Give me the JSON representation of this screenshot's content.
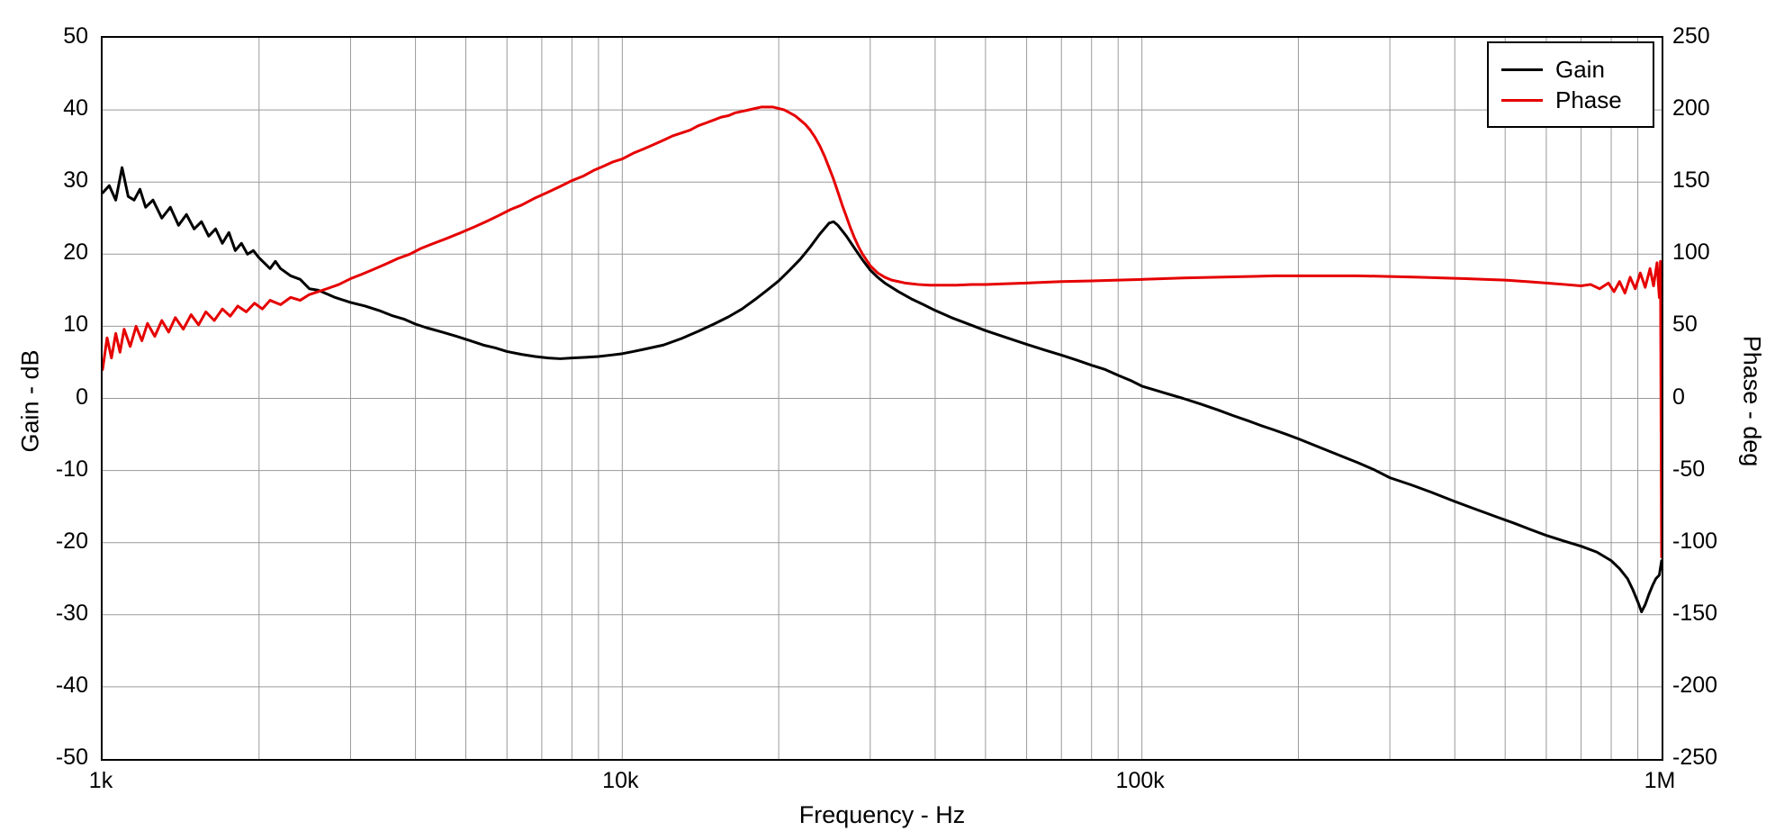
{
  "figure": {
    "background": "#ffffff",
    "xlabel": "Frequency - Hz",
    "ylabel_left": "Gain - dB",
    "ylabel_right": "Phase - deg"
  },
  "chart_data": {
    "type": "line",
    "title": "",
    "xlabel": "Frequency - Hz",
    "x_axis": {
      "scale": "log",
      "min": 1000,
      "max": 1000000,
      "ticks": [
        {
          "value": 1000,
          "label": "1k"
        },
        {
          "value": 10000,
          "label": "10k"
        },
        {
          "value": 100000,
          "label": "100k"
        },
        {
          "value": 1000000,
          "label": "1M"
        }
      ]
    },
    "y_left": {
      "label": "Gain - dB",
      "min": -50,
      "max": 50,
      "tick_step": 10,
      "ticks": [
        50,
        40,
        30,
        20,
        10,
        0,
        -10,
        -20,
        -30,
        -40,
        -50
      ]
    },
    "y_right": {
      "label": "Phase - deg",
      "min": -250,
      "max": 250,
      "tick_step": 50,
      "ticks": [
        250,
        200,
        150,
        100,
        50,
        0,
        -50,
        -100,
        -150,
        -200,
        -250
      ]
    },
    "grid": true,
    "grid_color": "#9a9a9a",
    "legend": {
      "position": "top-right"
    },
    "series": [
      {
        "name": "Gain",
        "color": "#000000",
        "axis": "left",
        "points": [
          [
            1000,
            28.5
          ],
          [
            1030,
            29.5
          ],
          [
            1060,
            27.5
          ],
          [
            1090,
            32
          ],
          [
            1120,
            28
          ],
          [
            1150,
            27.5
          ],
          [
            1180,
            29
          ],
          [
            1210,
            26.5
          ],
          [
            1250,
            27.5
          ],
          [
            1300,
            25
          ],
          [
            1350,
            26.5
          ],
          [
            1400,
            24
          ],
          [
            1450,
            25.5
          ],
          [
            1500,
            23.5
          ],
          [
            1550,
            24.5
          ],
          [
            1600,
            22.5
          ],
          [
            1650,
            23.5
          ],
          [
            1700,
            21.5
          ],
          [
            1750,
            23
          ],
          [
            1800,
            20.5
          ],
          [
            1850,
            21.5
          ],
          [
            1900,
            20
          ],
          [
            1950,
            20.5
          ],
          [
            2000,
            19.5
          ],
          [
            2100,
            18
          ],
          [
            2150,
            19
          ],
          [
            2200,
            18
          ],
          [
            2300,
            17
          ],
          [
            2400,
            16.5
          ],
          [
            2500,
            15.2
          ],
          [
            2600,
            15
          ],
          [
            2700,
            14.5
          ],
          [
            2800,
            14
          ],
          [
            3000,
            13.3
          ],
          [
            3200,
            12.8
          ],
          [
            3400,
            12.2
          ],
          [
            3600,
            11.5
          ],
          [
            3800,
            11
          ],
          [
            4000,
            10.3
          ],
          [
            4200,
            9.8
          ],
          [
            4500,
            9.2
          ],
          [
            4800,
            8.6
          ],
          [
            5100,
            8
          ],
          [
            5400,
            7.4
          ],
          [
            5700,
            7
          ],
          [
            6000,
            6.5
          ],
          [
            6400,
            6.1
          ],
          [
            6800,
            5.8
          ],
          [
            7200,
            5.6
          ],
          [
            7600,
            5.5
          ],
          [
            8000,
            5.6
          ],
          [
            8500,
            5.7
          ],
          [
            9000,
            5.8
          ],
          [
            9500,
            6
          ],
          [
            10000,
            6.2
          ],
          [
            10500,
            6.5
          ],
          [
            11000,
            6.8
          ],
          [
            12000,
            7.4
          ],
          [
            13000,
            8.3
          ],
          [
            14000,
            9.3
          ],
          [
            15000,
            10.3
          ],
          [
            16000,
            11.3
          ],
          [
            17000,
            12.4
          ],
          [
            18000,
            13.7
          ],
          [
            19000,
            15
          ],
          [
            20000,
            16.3
          ],
          [
            21000,
            17.8
          ],
          [
            22000,
            19.3
          ],
          [
            23000,
            21
          ],
          [
            24000,
            22.8
          ],
          [
            25000,
            24.3
          ],
          [
            25500,
            24.5
          ],
          [
            26000,
            24
          ],
          [
            27000,
            22.5
          ],
          [
            28000,
            20.8
          ],
          [
            29000,
            19.2
          ],
          [
            30000,
            17.8
          ],
          [
            31000,
            16.8
          ],
          [
            32000,
            16
          ],
          [
            34000,
            14.8
          ],
          [
            36000,
            13.8
          ],
          [
            38000,
            13
          ],
          [
            40000,
            12.2
          ],
          [
            43000,
            11.2
          ],
          [
            46000,
            10.4
          ],
          [
            50000,
            9.4
          ],
          [
            55000,
            8.4
          ],
          [
            60000,
            7.5
          ],
          [
            65000,
            6.7
          ],
          [
            70000,
            6
          ],
          [
            75000,
            5.3
          ],
          [
            80000,
            4.6
          ],
          [
            85000,
            4
          ],
          [
            90000,
            3.2
          ],
          [
            95000,
            2.5
          ],
          [
            100000,
            1.7
          ],
          [
            110000,
            0.8
          ],
          [
            120000,
            0
          ],
          [
            130000,
            -0.8
          ],
          [
            140000,
            -1.6
          ],
          [
            150000,
            -2.4
          ],
          [
            160000,
            -3.1
          ],
          [
            170000,
            -3.8
          ],
          [
            180000,
            -4.4
          ],
          [
            190000,
            -5
          ],
          [
            200000,
            -5.6
          ],
          [
            220000,
            -6.8
          ],
          [
            240000,
            -7.9
          ],
          [
            260000,
            -8.9
          ],
          [
            280000,
            -9.9
          ],
          [
            300000,
            -11
          ],
          [
            330000,
            -12
          ],
          [
            360000,
            -13
          ],
          [
            400000,
            -14.3
          ],
          [
            440000,
            -15.4
          ],
          [
            480000,
            -16.4
          ],
          [
            520000,
            -17.3
          ],
          [
            560000,
            -18.2
          ],
          [
            600000,
            -19
          ],
          [
            650000,
            -19.8
          ],
          [
            700000,
            -20.5
          ],
          [
            750000,
            -21.3
          ],
          [
            800000,
            -22.5
          ],
          [
            830000,
            -23.6
          ],
          [
            860000,
            -25
          ],
          [
            880000,
            -26.5
          ],
          [
            900000,
            -28.2
          ],
          [
            915000,
            -29.6
          ],
          [
            930000,
            -28.6
          ],
          [
            945000,
            -27.2
          ],
          [
            960000,
            -26
          ],
          [
            975000,
            -25
          ],
          [
            990000,
            -24.5
          ],
          [
            1000000,
            -22.5
          ]
        ]
      },
      {
        "name": "Phase",
        "color": "#e60000",
        "axis": "right",
        "points": [
          [
            1000,
            20
          ],
          [
            1020,
            42
          ],
          [
            1040,
            28
          ],
          [
            1060,
            45
          ],
          [
            1080,
            32
          ],
          [
            1100,
            48
          ],
          [
            1130,
            36
          ],
          [
            1160,
            50
          ],
          [
            1190,
            40
          ],
          [
            1220,
            52
          ],
          [
            1260,
            43
          ],
          [
            1300,
            54
          ],
          [
            1340,
            46
          ],
          [
            1380,
            56
          ],
          [
            1430,
            48
          ],
          [
            1480,
            58
          ],
          [
            1530,
            51
          ],
          [
            1580,
            60
          ],
          [
            1640,
            54
          ],
          [
            1700,
            62
          ],
          [
            1760,
            57
          ],
          [
            1820,
            64
          ],
          [
            1890,
            60
          ],
          [
            1960,
            66
          ],
          [
            2030,
            62
          ],
          [
            2100,
            68
          ],
          [
            2200,
            65
          ],
          [
            2300,
            70
          ],
          [
            2400,
            68
          ],
          [
            2500,
            72
          ],
          [
            2600,
            74
          ],
          [
            2700,
            76
          ],
          [
            2850,
            79
          ],
          [
            3000,
            83
          ],
          [
            3150,
            86
          ],
          [
            3300,
            89
          ],
          [
            3500,
            93
          ],
          [
            3700,
            97
          ],
          [
            3900,
            100
          ],
          [
            4100,
            104
          ],
          [
            4300,
            107
          ],
          [
            4600,
            111
          ],
          [
            4900,
            115
          ],
          [
            5200,
            119
          ],
          [
            5500,
            123
          ],
          [
            5800,
            127
          ],
          [
            6100,
            131
          ],
          [
            6400,
            134
          ],
          [
            6800,
            139
          ],
          [
            7200,
            143
          ],
          [
            7600,
            147
          ],
          [
            8000,
            151
          ],
          [
            8400,
            154
          ],
          [
            8800,
            158
          ],
          [
            9200,
            161
          ],
          [
            9600,
            164
          ],
          [
            10000,
            166
          ],
          [
            10500,
            170
          ],
          [
            11000,
            173
          ],
          [
            11500,
            176
          ],
          [
            12000,
            179
          ],
          [
            12500,
            182
          ],
          [
            13000,
            184
          ],
          [
            13500,
            186
          ],
          [
            14000,
            189
          ],
          [
            14500,
            191
          ],
          [
            15000,
            193
          ],
          [
            15500,
            195
          ],
          [
            16000,
            196
          ],
          [
            16500,
            198
          ],
          [
            17000,
            199
          ],
          [
            17500,
            200
          ],
          [
            18000,
            201
          ],
          [
            18500,
            202
          ],
          [
            19000,
            202
          ],
          [
            19500,
            202
          ],
          [
            20000,
            201
          ],
          [
            20500,
            200
          ],
          [
            21000,
            198
          ],
          [
            21500,
            196
          ],
          [
            22000,
            193
          ],
          [
            22500,
            190
          ],
          [
            23000,
            186
          ],
          [
            23500,
            181
          ],
          [
            24000,
            175
          ],
          [
            24500,
            168
          ],
          [
            25000,
            160
          ],
          [
            25500,
            152
          ],
          [
            26000,
            143
          ],
          [
            26500,
            134
          ],
          [
            27000,
            126
          ],
          [
            27500,
            118
          ],
          [
            28000,
            111
          ],
          [
            28500,
            105
          ],
          [
            29000,
            100
          ],
          [
            29500,
            96
          ],
          [
            30000,
            92
          ],
          [
            31000,
            87
          ],
          [
            32000,
            84
          ],
          [
            33000,
            82
          ],
          [
            34000,
            81
          ],
          [
            35000,
            80
          ],
          [
            37000,
            79
          ],
          [
            39000,
            78.5
          ],
          [
            41000,
            78.5
          ],
          [
            44000,
            78.5
          ],
          [
            47000,
            79
          ],
          [
            50000,
            79
          ],
          [
            55000,
            79.5
          ],
          [
            60000,
            80
          ],
          [
            65000,
            80.5
          ],
          [
            70000,
            81
          ],
          [
            80000,
            81.5
          ],
          [
            90000,
            82
          ],
          [
            100000,
            82.5
          ],
          [
            110000,
            83
          ],
          [
            120000,
            83.5
          ],
          [
            140000,
            84
          ],
          [
            160000,
            84.5
          ],
          [
            180000,
            85
          ],
          [
            200000,
            85
          ],
          [
            230000,
            85
          ],
          [
            260000,
            85
          ],
          [
            300000,
            84.5
          ],
          [
            340000,
            84
          ],
          [
            380000,
            83.5
          ],
          [
            420000,
            83
          ],
          [
            460000,
            82.5
          ],
          [
            500000,
            82
          ],
          [
            550000,
            81
          ],
          [
            600000,
            80
          ],
          [
            650000,
            79
          ],
          [
            700000,
            78
          ],
          [
            730000,
            79
          ],
          [
            760000,
            76
          ],
          [
            790000,
            80
          ],
          [
            810000,
            74
          ],
          [
            830000,
            81
          ],
          [
            850000,
            73
          ],
          [
            870000,
            84
          ],
          [
            890000,
            76
          ],
          [
            910000,
            87
          ],
          [
            930000,
            77
          ],
          [
            950000,
            90
          ],
          [
            965000,
            78
          ],
          [
            980000,
            94
          ],
          [
            990000,
            70
          ],
          [
            995000,
            95
          ],
          [
            1000000,
            -110
          ]
        ]
      }
    ]
  }
}
